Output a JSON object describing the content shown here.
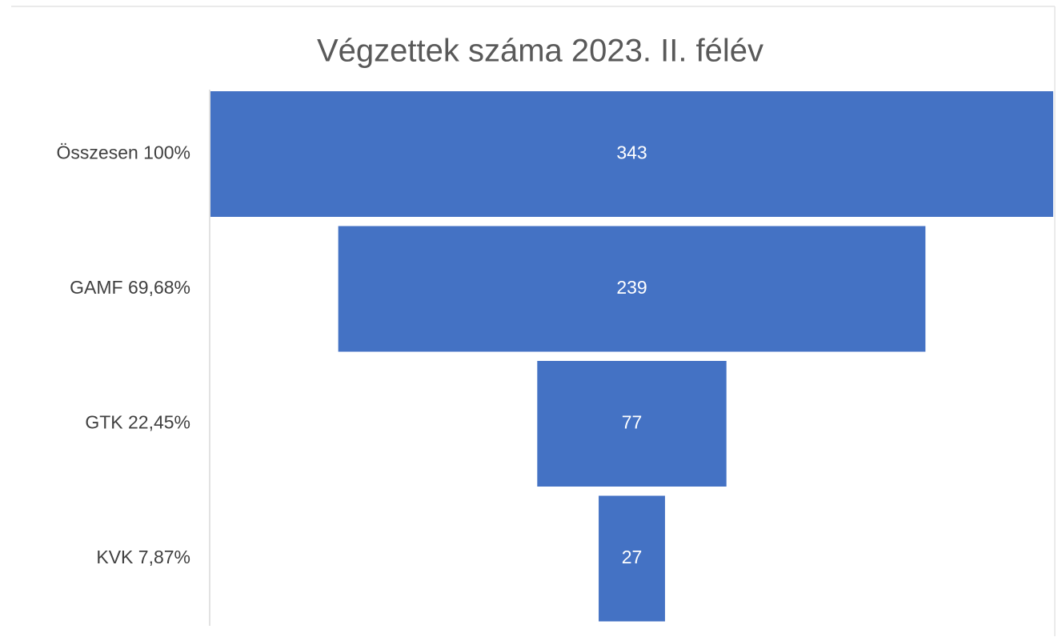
{
  "chart_data": {
    "type": "funnel",
    "title": "Végzettek száma 2023. II. félév",
    "categories": [
      "Összesen 100%",
      "GAMF 69,68%",
      "GTK 22,45%",
      "KVK 7,87%"
    ],
    "values": [
      343,
      239,
      77,
      27
    ],
    "color": "#4472c4"
  }
}
